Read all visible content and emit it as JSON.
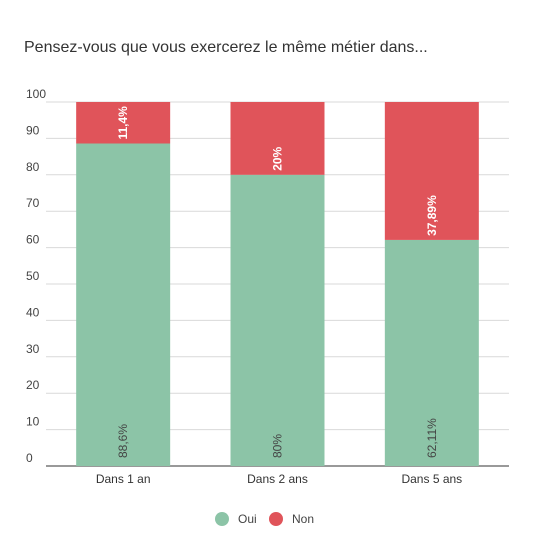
{
  "chart_data": {
    "type": "bar",
    "stacked": true,
    "title": "Pensez-vous que vous exercerez le même métier dans...",
    "xlabel": "",
    "ylabel": "",
    "ylim": [
      0,
      100
    ],
    "yticks": [
      0,
      10,
      20,
      30,
      40,
      50,
      60,
      70,
      80,
      90,
      100
    ],
    "grid": true,
    "legend_position": "bottom",
    "categories": [
      "Dans 1 an",
      "Dans 2 ans",
      "Dans 5 ans"
    ],
    "series": [
      {
        "name": "Oui",
        "color": "#8cc4a7",
        "values": [
          88.6,
          80,
          62.11
        ],
        "labels": [
          "88,6%",
          "80%",
          "62,11%"
        ]
      },
      {
        "name": "Non",
        "color": "#e0545a",
        "values": [
          11.4,
          20,
          37.89
        ],
        "labels": [
          "11,4%",
          "20%",
          "37,89%"
        ]
      }
    ]
  }
}
